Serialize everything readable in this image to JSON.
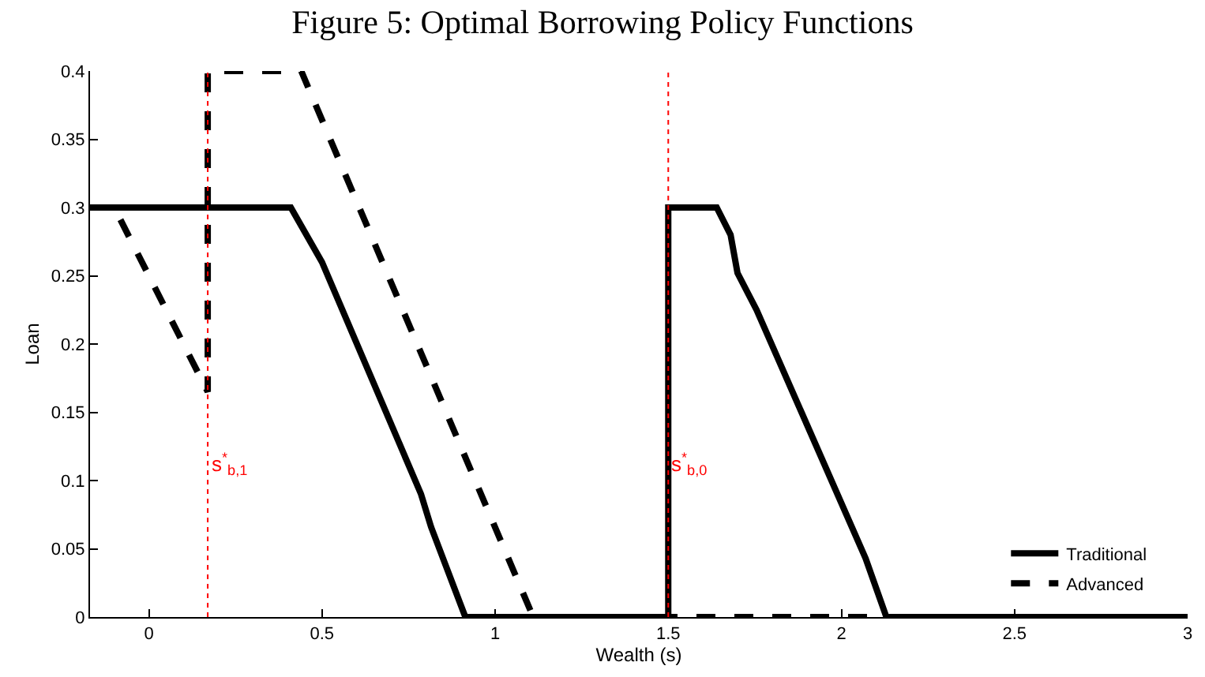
{
  "chart_data": {
    "type": "line",
    "title": "Figure 5: Optimal Borrowing Policy Functions",
    "xlabel": "Wealth (s)",
    "ylabel": "Loan",
    "series": [
      {
        "name": "Traditional",
        "color": "#000000",
        "line_style": "solid",
        "x": [
          -0.17,
          0.41,
          0.5,
          0.786,
          0.815,
          0.914,
          1.5,
          1.5,
          1.64,
          1.68,
          1.7,
          1.755,
          2.07,
          2.13,
          3
        ],
        "values": [
          0.3,
          0.3,
          0.26,
          0.09,
          0.066,
          0,
          0,
          0.3,
          0.3,
          0.28,
          0.252,
          0.225,
          0.043,
          0,
          0
        ]
      },
      {
        "name": "Advanced",
        "color": "#000000",
        "line_style": "dashed",
        "x": [
          -0.17,
          -0.1,
          0.17,
          0.17,
          0.44,
          1.11,
          3
        ],
        "values": [
          0.3,
          0.3,
          0.165,
          0.4,
          0.4,
          0,
          0
        ]
      }
    ],
    "ref_lines": [
      {
        "axis": "x",
        "value": 0.17,
        "label": "s$^{*}$$_{b,1}$",
        "color": "#ff0000",
        "line_style": "dotted"
      },
      {
        "axis": "x",
        "value": 1.5,
        "label": "s$^{*}$$_{b,0}$",
        "color": "#ff0000",
        "line_style": "dotted"
      }
    ],
    "xlim": [
      -0.17,
      3
    ],
    "xticks": [
      0,
      0.5,
      1,
      1.5,
      2,
      2.5,
      3
    ],
    "ylim": [
      0,
      0.4
    ],
    "yticks": [
      0,
      0.05,
      0.1,
      0.15,
      0.2,
      0.25,
      0.3,
      0.35,
      0.4
    ],
    "legend": "bottom right",
    "marker": "none"
  }
}
